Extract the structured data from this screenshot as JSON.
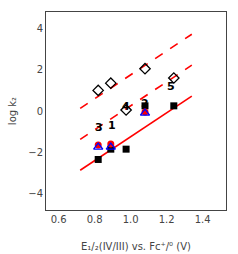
{
  "chart_data": {
    "type": "scatter",
    "xlabel": "E₁/₂(IV/III) vs. Fc⁺/⁰ (V)",
    "ylabel": "log k₂",
    "xlim": [
      0.53,
      1.53
    ],
    "ylim": [
      -4.8,
      4.8
    ],
    "xticks": [
      0.6,
      0.8,
      {
        "value": 1.0,
        "label": "1.0"
      },
      1.2,
      1.4
    ],
    "yticks": [
      -4,
      -2,
      0,
      2,
      4
    ],
    "grid": false,
    "x": [
      0.89,
      1.08,
      0.82,
      0.975,
      1.24
    ],
    "series": [
      {
        "type": "line",
        "x": [
          0.72,
          1.34
        ],
        "values": [
          -2.874,
          0.722
        ],
        "color": "#FF0000",
        "line_style": "solid"
      },
      {
        "type": "line",
        "x": [
          0.72,
          1.34
        ],
        "values": [
          -1.374,
          2.222
        ],
        "color": "#FF0000",
        "line_style": "dash"
      },
      {
        "type": "line",
        "x": [
          0.72,
          1.34
        ],
        "values": [
          0.126,
          3.722
        ],
        "color": "#FF0000",
        "line_style": "dash"
      },
      {
        "type": "scatter",
        "values": [
          -1.85,
          0.25,
          -2.35,
          -1.85,
          0.25
        ],
        "color": "#000000",
        "marker": "square"
      },
      {
        "type": "scatter",
        "values": [
          -1.6,
          -0.05,
          -1.65,
          null,
          null
        ],
        "color": "#FF0000",
        "marker": "circle"
      },
      {
        "type": "scatter",
        "values": [
          -1.75,
          -0.1,
          -1.75,
          null,
          null
        ],
        "color": "#0000FF",
        "marker": "triangle-up-open"
      },
      {
        "type": "scatter",
        "values": [
          1.35,
          2.05,
          1.0,
          0.05,
          1.6
        ],
        "color": "#000000",
        "marker": "diamond-open"
      }
    ],
    "annotations": [
      {
        "text": "1",
        "x": 0.895,
        "y": -0.72
      },
      {
        "text": "2",
        "x": 1.08,
        "y": 0.38
      },
      {
        "text": "3",
        "x": 0.825,
        "y": -0.8
      },
      {
        "text": "4",
        "x": 0.975,
        "y": 0.22
      },
      {
        "text": "5",
        "x": 1.225,
        "y": 1.2
      }
    ]
  }
}
